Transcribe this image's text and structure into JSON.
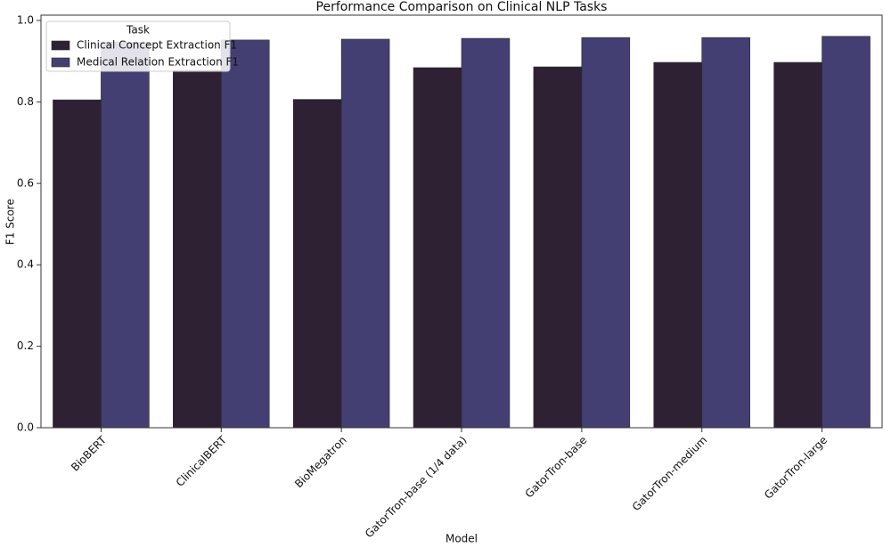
{
  "chart_data": {
    "type": "bar",
    "title": "Performance Comparison on Clinical NLP Tasks",
    "x_label": "Model",
    "y_label": "F1 Score",
    "legend_title": "Task",
    "legend_position": "upper left",
    "categories": [
      "BioBERT",
      "ClinicalBERT",
      "BioMegatron",
      "GatorTron-base (1/4 data)",
      "GatorTron-base",
      "GatorTron-medium",
      "GatorTron-large"
    ],
    "series": [
      {
        "name": "Clinical Concept Extraction F1",
        "color": "#2d2133",
        "values": [
          0.805,
          0.878,
          0.806,
          0.884,
          0.886,
          0.897,
          0.897
        ]
      },
      {
        "name": "Medical Relation Extraction F1",
        "color": "#433f73",
        "values": [
          0.947,
          0.952,
          0.954,
          0.956,
          0.958,
          0.958,
          0.961
        ]
      }
    ],
    "ylim": [
      0,
      1.013
    ],
    "yticks": [
      {
        "value": 0,
        "label": "0.0"
      },
      0.2,
      0.4,
      0.6,
      0.8,
      {
        "value": 1,
        "label": "1.0"
      }
    ]
  }
}
